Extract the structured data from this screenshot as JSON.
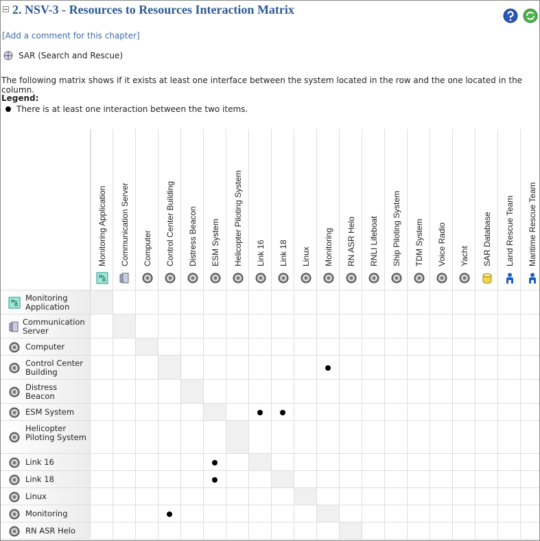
{
  "header": {
    "title": "2. NSV-3 - Resources to Resources Interaction Matrix",
    "comment_link": "[Add a comment for this chapter]"
  },
  "context": "SAR (Search and Rescue)",
  "description": "The following matrix shows if it exists at least one interface between the system located in the row and the one located in the column.",
  "legend": {
    "title": "Legend:",
    "item": "There is at least one interaction between the two items."
  },
  "matrix": {
    "columns": [
      {
        "label": "Monitoring Application",
        "icon": "application"
      },
      {
        "label": "Communication Server",
        "icon": "server"
      },
      {
        "label": "Computer",
        "icon": "gear"
      },
      {
        "label": "Control Center Building",
        "icon": "gear"
      },
      {
        "label": "Distress Beacon",
        "icon": "gear"
      },
      {
        "label": "ESM System",
        "icon": "gear"
      },
      {
        "label": "Helicopter Piloting System",
        "icon": "gear"
      },
      {
        "label": "Link 16",
        "icon": "gear"
      },
      {
        "label": "Link 18",
        "icon": "gear"
      },
      {
        "label": "Linux",
        "icon": "gear"
      },
      {
        "label": "Monitoring",
        "icon": "gear"
      },
      {
        "label": "RN ASR Helo",
        "icon": "gear"
      },
      {
        "label": "RNLI Lifeboat",
        "icon": "gear"
      },
      {
        "label": "Ship Piloting System",
        "icon": "gear"
      },
      {
        "label": "TDM System",
        "icon": "gear"
      },
      {
        "label": "Voice Radio",
        "icon": "gear"
      },
      {
        "label": "Yacht",
        "icon": "gear"
      },
      {
        "label": "SAR Database",
        "icon": "database"
      },
      {
        "label": "Land Rescue Team",
        "icon": "person"
      },
      {
        "label": "Maritime Rescue Team",
        "icon": "person"
      }
    ],
    "rows": [
      {
        "label": "Monitoring Application",
        "icon": "application",
        "cells": [
          false,
          false,
          false,
          false,
          false,
          false,
          false,
          false,
          false,
          false,
          false,
          false,
          false,
          false,
          false,
          false,
          false,
          false,
          false,
          false
        ]
      },
      {
        "label": "Communication Server",
        "icon": "server",
        "cells": [
          false,
          false,
          false,
          false,
          false,
          false,
          false,
          false,
          false,
          false,
          false,
          false,
          false,
          false,
          false,
          false,
          false,
          false,
          false,
          false
        ]
      },
      {
        "label": "Computer",
        "icon": "gear",
        "cells": [
          false,
          false,
          false,
          false,
          false,
          false,
          false,
          false,
          false,
          false,
          false,
          false,
          false,
          false,
          false,
          false,
          false,
          false,
          false,
          false
        ]
      },
      {
        "label": "Control Center Building",
        "icon": "gear",
        "cells": [
          false,
          false,
          false,
          false,
          false,
          false,
          false,
          false,
          false,
          false,
          true,
          false,
          false,
          false,
          false,
          false,
          false,
          false,
          false,
          false
        ]
      },
      {
        "label": "Distress Beacon",
        "icon": "gear",
        "cells": [
          false,
          false,
          false,
          false,
          false,
          false,
          false,
          false,
          false,
          false,
          false,
          false,
          false,
          false,
          false,
          false,
          false,
          false,
          false,
          false
        ]
      },
      {
        "label": "ESM System",
        "icon": "gear",
        "cells": [
          false,
          false,
          false,
          false,
          false,
          false,
          false,
          true,
          true,
          false,
          false,
          false,
          false,
          false,
          false,
          false,
          false,
          false,
          false,
          false
        ]
      },
      {
        "label": "Helicopter Piloting System",
        "icon": "gear",
        "cells": [
          false,
          false,
          false,
          false,
          false,
          false,
          false,
          false,
          false,
          false,
          false,
          false,
          false,
          false,
          false,
          false,
          false,
          false,
          false,
          false
        ]
      },
      {
        "label": "Link 16",
        "icon": "gear",
        "cells": [
          false,
          false,
          false,
          false,
          false,
          true,
          false,
          false,
          false,
          false,
          false,
          false,
          false,
          false,
          false,
          false,
          false,
          false,
          false,
          false
        ]
      },
      {
        "label": "Link 18",
        "icon": "gear",
        "cells": [
          false,
          false,
          false,
          false,
          false,
          true,
          false,
          false,
          false,
          false,
          false,
          false,
          false,
          false,
          false,
          false,
          false,
          false,
          false,
          false
        ]
      },
      {
        "label": "Linux",
        "icon": "gear",
        "cells": [
          false,
          false,
          false,
          false,
          false,
          false,
          false,
          false,
          false,
          false,
          false,
          false,
          false,
          false,
          false,
          false,
          false,
          false,
          false,
          false
        ]
      },
      {
        "label": "Monitoring",
        "icon": "gear",
        "cells": [
          false,
          false,
          false,
          true,
          false,
          false,
          false,
          false,
          false,
          false,
          false,
          false,
          false,
          false,
          false,
          false,
          false,
          false,
          false,
          false
        ]
      },
      {
        "label": "RN ASR Helo",
        "icon": "gear",
        "cells": [
          false,
          false,
          false,
          false,
          false,
          false,
          false,
          false,
          false,
          false,
          false,
          false,
          false,
          false,
          false,
          false,
          false,
          false,
          false,
          false
        ]
      }
    ]
  }
}
